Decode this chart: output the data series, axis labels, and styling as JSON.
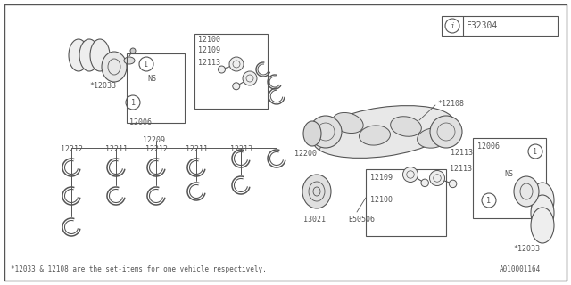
{
  "bg_color": "#ffffff",
  "border_color": "#555555",
  "text_color": "#555555",
  "fig_width": 6.4,
  "fig_height": 3.2,
  "dpi": 100,
  "doc_number": "A010001164",
  "footer_text": "*12033 & 12108 are the set-items for one vehicle respectively.",
  "part_ref": "F32304"
}
